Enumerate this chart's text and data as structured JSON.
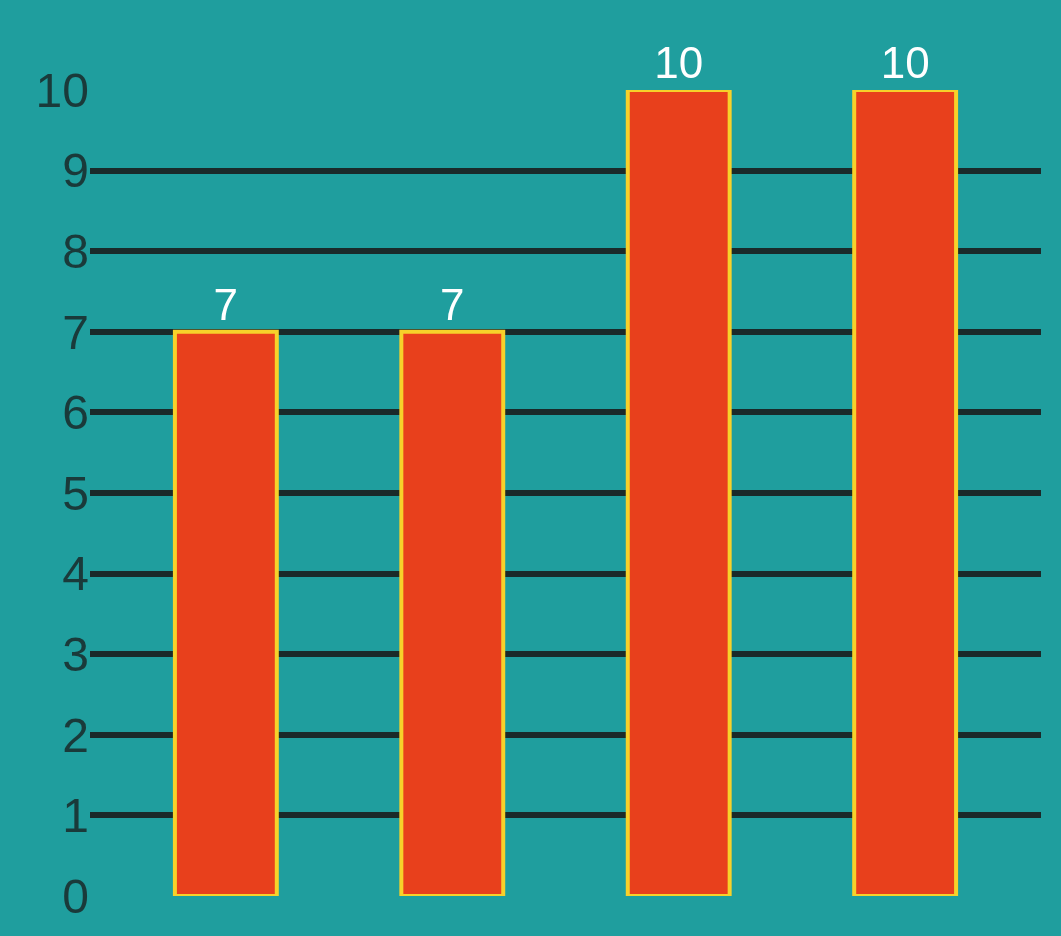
{
  "chart_data": {
    "type": "bar",
    "categories": [
      null,
      null,
      null,
      null
    ],
    "values": [
      7,
      7,
      10,
      10
    ],
    "color": "#e8401c",
    "ylim": [
      0,
      10
    ],
    "yticks": [
      0,
      1,
      2,
      3,
      4,
      5,
      6,
      7,
      8,
      9,
      10
    ],
    "grid": "y",
    "data_labels": true,
    "tick_labels": "y"
  }
}
